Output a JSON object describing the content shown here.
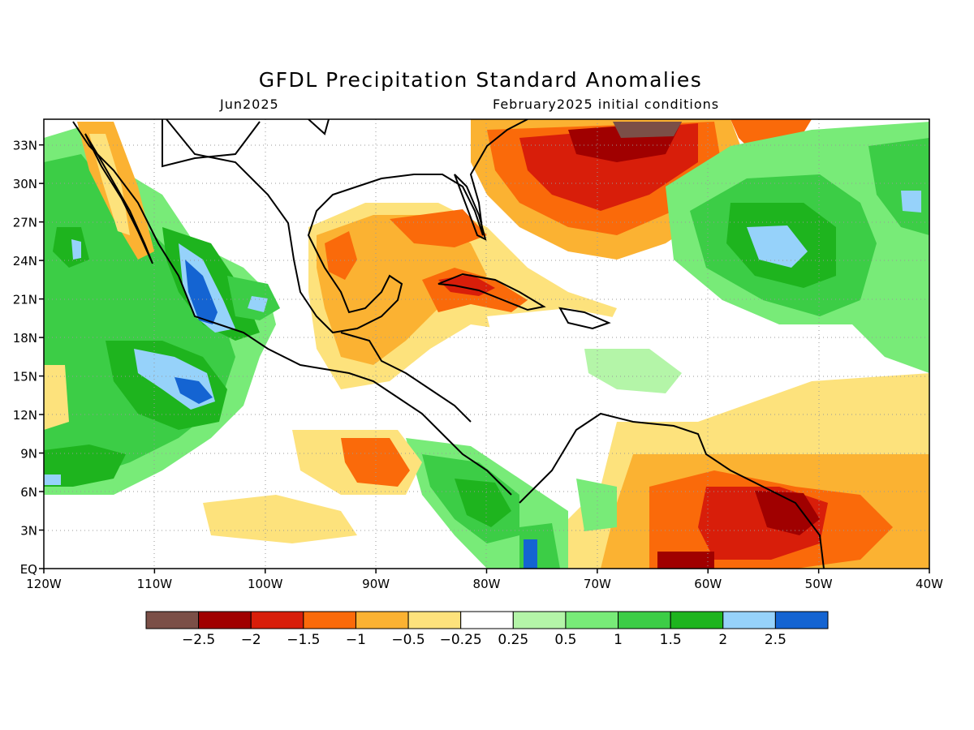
{
  "title": "GFDL Precipitation Standard Anomalies",
  "valid_month": "Jun2025",
  "init_label": "February2025 initial conditions",
  "map": {
    "lat_ticks": [
      "EQ",
      "3N",
      "6N",
      "9N",
      "12N",
      "15N",
      "18N",
      "21N",
      "24N",
      "27N",
      "30N",
      "33N"
    ],
    "lon_ticks": [
      "120W",
      "110W",
      "100W",
      "90W",
      "80W",
      "70W",
      "60W",
      "50W",
      "40W"
    ],
    "lat_range": [
      0,
      35
    ],
    "lon_range": [
      -120,
      -40
    ],
    "grid": "dotted"
  },
  "legend": {
    "colors": [
      "#7b4f47",
      "#a00000",
      "#d81e0a",
      "#fa6a0a",
      "#fbb232",
      "#fde27c",
      "#ffffff",
      "#b4f5a8",
      "#78eb78",
      "#3ccd46",
      "#1eb41e",
      "#96d2fa",
      "#1464d2"
    ],
    "labels": [
      "−2.5",
      "−2",
      "−1.5",
      "−1",
      "−0.5",
      "−0.25",
      "0.25",
      "0.5",
      "1",
      "1.5",
      "2",
      "2.5"
    ]
  }
}
